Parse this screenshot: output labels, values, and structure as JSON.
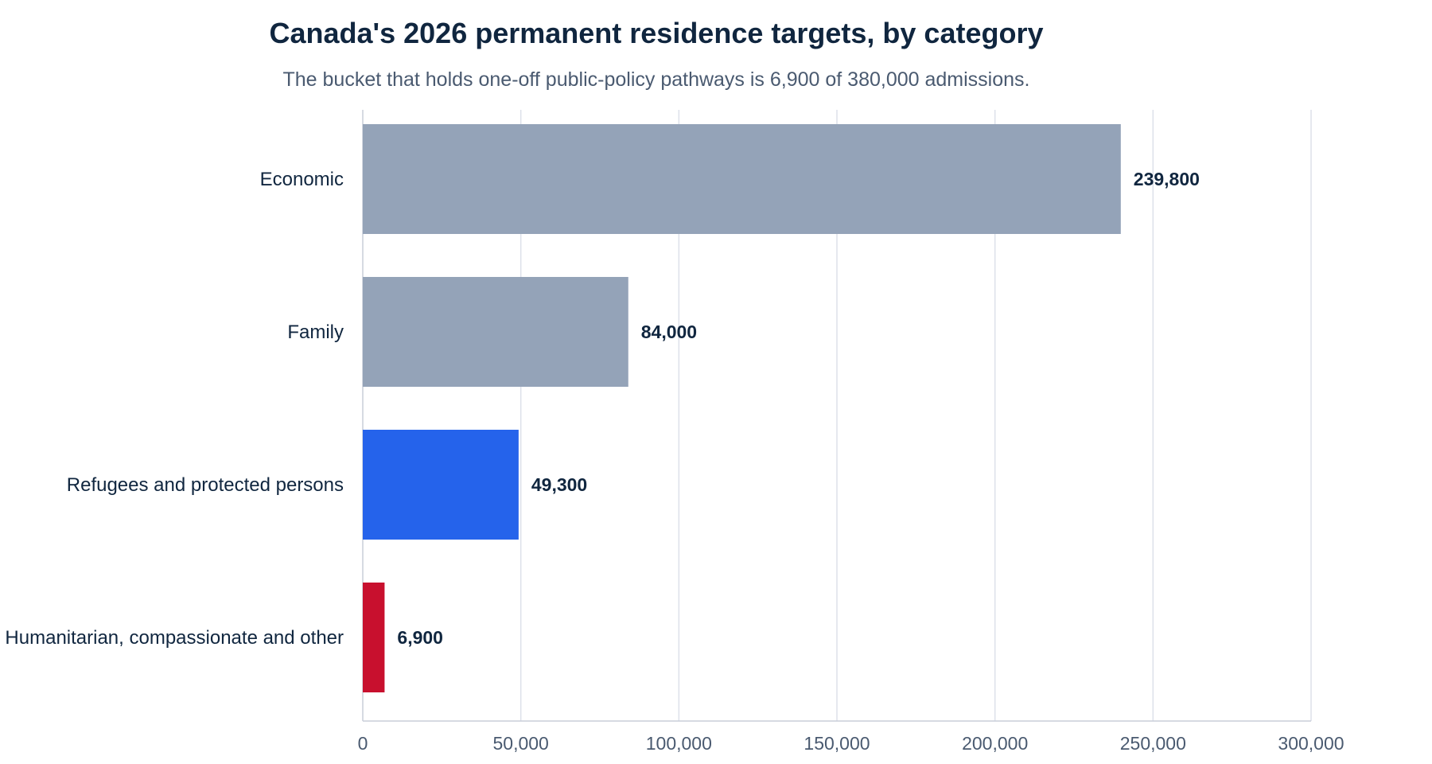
{
  "chart_data": {
    "type": "bar",
    "orientation": "horizontal",
    "title": "Canada's 2026 permanent residence targets, by category",
    "subtitle": "The bucket that holds one-off public-policy pathways is 6,900 of 380,000 admissions.",
    "categories": [
      "Economic",
      "Family",
      "Refugees and protected persons",
      "Humanitarian, compassionate and other"
    ],
    "values": [
      239800,
      84000,
      49300,
      6900
    ],
    "value_labels": [
      "239,800",
      "84,000",
      "49,300",
      "6,900"
    ],
    "bar_colors": [
      "#94a3b8",
      "#94a3b8",
      "#2563eb",
      "#c8102e"
    ],
    "xlim": [
      0,
      300000
    ],
    "x_ticks": [
      0,
      50000,
      100000,
      150000,
      200000,
      250000,
      300000
    ],
    "x_tick_labels": [
      "0",
      "50,000",
      "100,000",
      "150,000",
      "200,000",
      "250,000",
      "300,000"
    ],
    "grid": "vertical",
    "xlabel": "",
    "ylabel": ""
  }
}
